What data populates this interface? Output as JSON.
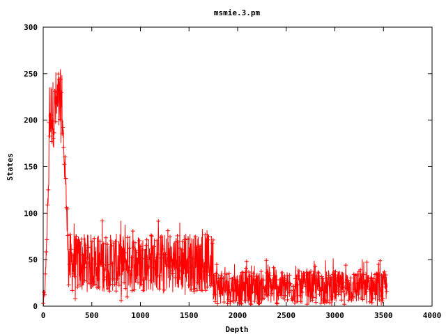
{
  "chart_data": {
    "type": "scatter",
    "title": "msmie.3.pm",
    "xlabel": "Depth",
    "ylabel": "States",
    "xlim": [
      0,
      4000
    ],
    "ylim": [
      0,
      300
    ],
    "xticks": [
      "0",
      "500",
      "1000",
      "1500",
      "2000",
      "2500",
      "3000",
      "3500",
      "4000"
    ],
    "yticks": [
      "0",
      "50",
      "100",
      "150",
      "200",
      "250",
      "300"
    ],
    "xtick_values": [
      0,
      500,
      1000,
      1500,
      2000,
      2500,
      3000,
      3500,
      4000
    ],
    "ytick_values": [
      0,
      50,
      100,
      150,
      200,
      250,
      300
    ],
    "grid": false,
    "marker": "plus",
    "connected": true,
    "color": "#ff0000",
    "series": [
      {
        "segments": [
          {
            "x_range": [
              0,
              20
            ],
            "y_min": 0,
            "y_max": 15,
            "shape": "ramp",
            "y_end": 25
          },
          {
            "x_range": [
              20,
              60
            ],
            "y_min": 20,
            "y_max": 130,
            "shape": "ramp",
            "y_end": 150
          },
          {
            "x_range": [
              60,
              120
            ],
            "y_min": 170,
            "y_max": 245,
            "shape": "band"
          },
          {
            "x_range": [
              120,
              200
            ],
            "y_min": 175,
            "y_max": 255,
            "shape": "band"
          },
          {
            "x_range": [
              200,
              260
            ],
            "y_min": 60,
            "y_max": 200,
            "shape": "ramp_down",
            "y_end": 60
          },
          {
            "x_range": [
              260,
              1750
            ],
            "y_min": 5,
            "y_max": 95,
            "shape": "band",
            "dense_max": 78,
            "dense_min": 15
          },
          {
            "x_range": [
              1750,
              1790
            ],
            "y_min": 5,
            "y_max": 50,
            "shape": "band"
          },
          {
            "x_range": [
              1790,
              3540
            ],
            "y_min": 0,
            "y_max": 52,
            "shape": "band",
            "dense_max": 38,
            "dense_min": 2
          }
        ],
        "x_max": 3540
      }
    ]
  }
}
